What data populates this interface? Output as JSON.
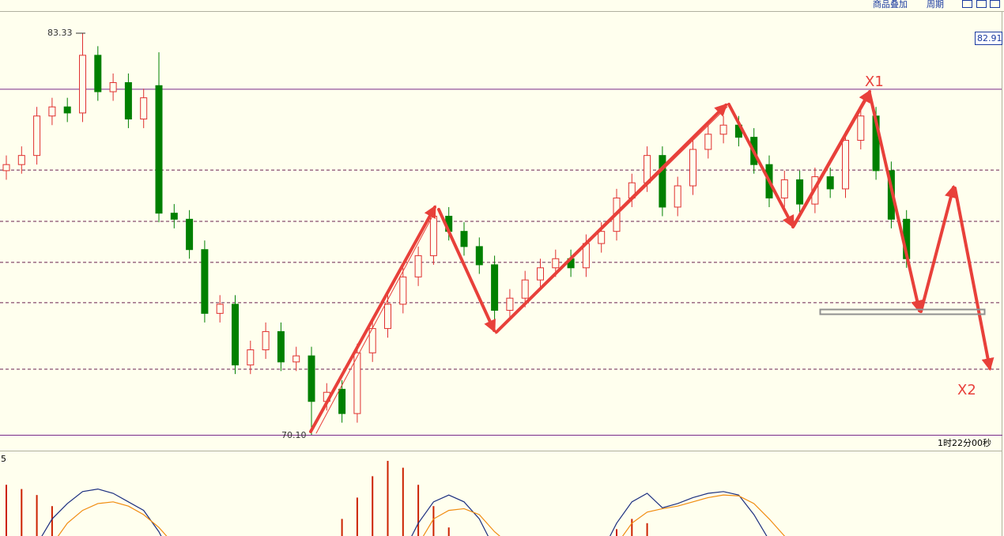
{
  "toolbar": {
    "overlay": "商品叠加",
    "period": "周期"
  },
  "chart_data": [
    {
      "type": "candlestick",
      "open": [
        78.8,
        79.0,
        79.3,
        80.6,
        80.9,
        80.7,
        82.6,
        81.4,
        81.7,
        80.5,
        81.6,
        77.4,
        77.2,
        76.2,
        74.1,
        74.4,
        72.4,
        72.9,
        73.5,
        72.5,
        72.7,
        71.2,
        71.6,
        70.8,
        72.8,
        73.6,
        74.4,
        75.3,
        76.0,
        77.3,
        76.8,
        76.3,
        75.7,
        74.2,
        74.6,
        75.2,
        75.6,
        75.9,
        75.6,
        76.4,
        76.8,
        77.9,
        78.4,
        79.3,
        77.6,
        78.3,
        79.5,
        80.0,
        80.3,
        79.9,
        79.0,
        77.9,
        78.5,
        77.7,
        78.6,
        78.2,
        79.8,
        80.6,
        78.8,
        77.2
      ],
      "high": [
        79.3,
        79.6,
        80.9,
        81.2,
        81.2,
        83.33,
        82.9,
        82.0,
        82.0,
        81.5,
        82.7,
        77.7,
        77.5,
        76.5,
        74.7,
        74.7,
        73.2,
        73.8,
        73.8,
        73.0,
        73.0,
        71.8,
        71.9,
        73.1,
        73.9,
        74.7,
        75.6,
        76.3,
        77.6,
        77.6,
        77.1,
        76.6,
        76.0,
        74.9,
        75.5,
        75.9,
        76.2,
        76.2,
        76.7,
        77.1,
        78.2,
        78.7,
        79.6,
        79.6,
        78.6,
        79.8,
        80.3,
        80.6,
        80.6,
        80.2,
        79.3,
        78.8,
        78.8,
        78.9,
        78.9,
        80.1,
        80.9,
        80.9,
        79.1,
        77.5
      ],
      "low": [
        78.5,
        78.7,
        79.0,
        80.3,
        80.4,
        80.4,
        81.1,
        81.1,
        80.2,
        80.2,
        77.1,
        76.9,
        75.9,
        73.8,
        73.8,
        72.1,
        72.1,
        72.6,
        72.2,
        72.2,
        70.1,
        70.9,
        70.5,
        70.5,
        72.5,
        73.3,
        74.1,
        75.0,
        75.7,
        76.5,
        76.0,
        75.4,
        73.9,
        73.9,
        74.3,
        74.9,
        75.3,
        75.3,
        75.3,
        76.1,
        76.5,
        77.6,
        78.1,
        77.3,
        77.3,
        78.0,
        79.2,
        79.7,
        79.6,
        78.7,
        77.6,
        77.6,
        77.4,
        77.4,
        77.9,
        77.9,
        79.5,
        78.5,
        76.9,
        75.6
      ],
      "close": [
        79.0,
        79.3,
        80.6,
        80.9,
        80.7,
        82.6,
        81.4,
        81.7,
        80.5,
        81.2,
        77.4,
        77.2,
        76.2,
        74.1,
        74.4,
        72.4,
        72.9,
        73.5,
        72.5,
        72.7,
        71.2,
        71.5,
        70.8,
        72.8,
        73.6,
        74.4,
        75.3,
        76.0,
        77.3,
        76.8,
        76.3,
        75.7,
        74.2,
        74.6,
        75.2,
        75.6,
        75.9,
        75.6,
        76.4,
        76.8,
        77.9,
        78.4,
        79.3,
        77.6,
        78.3,
        79.5,
        80.0,
        80.3,
        79.9,
        79.0,
        77.9,
        78.5,
        77.7,
        78.6,
        78.2,
        79.8,
        80.6,
        78.8,
        77.2,
        75.9
      ],
      "ylim": [
        70.1,
        84.03
      ],
      "up_color": "#e03030",
      "down_color": "#008000",
      "solid_levels": [
        81.48
      ],
      "dashed_levels": [
        78.82,
        77.13,
        75.78,
        74.45,
        72.26
      ],
      "max_label": "83.33",
      "min_label": "70.10",
      "price_label": "82.91",
      "time_label": "1时22分00秒",
      "annotations": [
        "X1",
        "X2"
      ]
    },
    {
      "type": "macd",
      "title": "5",
      "histogram": [
        60,
        55,
        48,
        35,
        0,
        0,
        0,
        0,
        0,
        0,
        0,
        0,
        0,
        0,
        0,
        0,
        0,
        0,
        0,
        0,
        0,
        0,
        20,
        45,
        70,
        88,
        80,
        60,
        35,
        10,
        0,
        0,
        0,
        0,
        0,
        0,
        0,
        0,
        0,
        0,
        8,
        20,
        15,
        0,
        0,
        0,
        0,
        0,
        0,
        0,
        0,
        0,
        0,
        0,
        0,
        0,
        0,
        0,
        0,
        0
      ],
      "dif": [
        null,
        null,
        -10,
        20,
        38,
        52,
        55,
        50,
        40,
        30,
        5,
        -30,
        null,
        null,
        null,
        null,
        null,
        null,
        null,
        null,
        null,
        null,
        null,
        null,
        null,
        null,
        -20,
        15,
        40,
        48,
        40,
        20,
        -15,
        null,
        null,
        null,
        null,
        null,
        null,
        -20,
        15,
        40,
        50,
        33,
        38,
        45,
        50,
        52,
        48,
        25,
        -5,
        null,
        null,
        null,
        null,
        null,
        null,
        null,
        null,
        null
      ],
      "dea": [
        null,
        null,
        null,
        -10,
        15,
        30,
        38,
        40,
        35,
        25,
        10,
        -10,
        null,
        null,
        null,
        null,
        null,
        null,
        null,
        null,
        null,
        null,
        null,
        null,
        null,
        null,
        null,
        -10,
        20,
        30,
        32,
        25,
        5,
        -10,
        null,
        null,
        null,
        null,
        null,
        null,
        -10,
        15,
        28,
        32,
        35,
        40,
        45,
        48,
        47,
        38,
        20,
        0,
        -15,
        null,
        null,
        null,
        null,
        null,
        null,
        null
      ],
      "ylim": [
        0,
        100
      ],
      "hist_color": "#cc2200",
      "dif_color": "#1c2f80",
      "dea_color": "#f08c10"
    }
  ]
}
